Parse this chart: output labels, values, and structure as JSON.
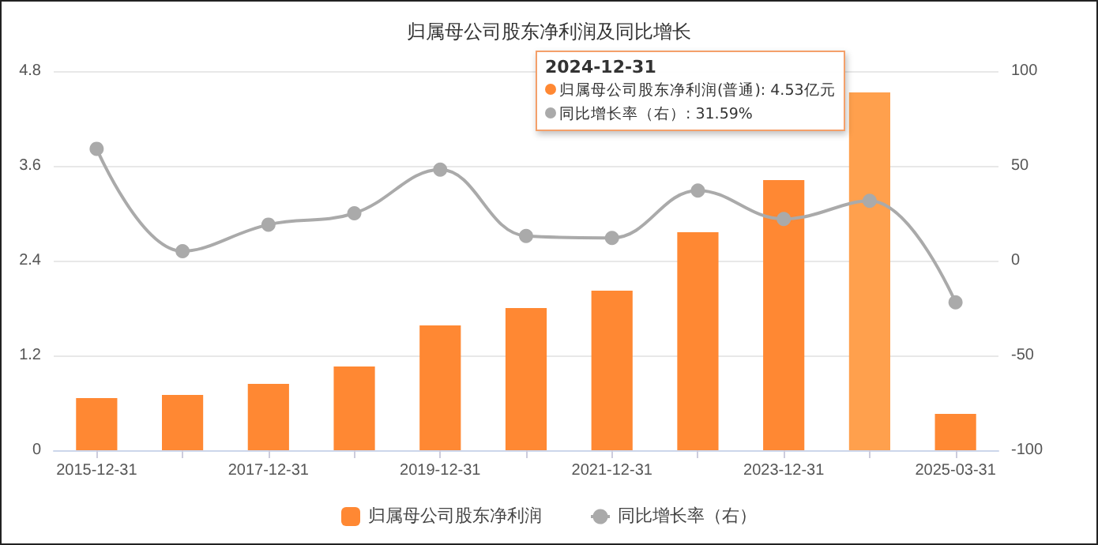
{
  "chart_data": {
    "type": "bar",
    "title": "归属母公司股东净利润及同比增长",
    "categories": [
      "2015-12-31",
      null,
      "2017-12-31",
      null,
      "2019-12-31",
      null,
      "2021-12-31",
      null,
      "2023-12-31",
      null,
      "2025-03-31"
    ],
    "series": [
      {
        "name": "归属母公司股东净利润",
        "color": "#ff8833",
        "colors": [
          "#ff8833",
          "#ff8833",
          "#ff8833",
          "#ff8833",
          "#ff8833",
          "#ff8833",
          "#ff8833",
          "#ff8833",
          "#ff8833",
          "#ffa04d",
          "#ff8833"
        ],
        "values": [
          0.66,
          0.7,
          0.84,
          1.06,
          1.58,
          1.8,
          2.02,
          2.76,
          3.42,
          4.53,
          0.46
        ]
      },
      {
        "name": "同比增长率（右）",
        "type": "line",
        "axis": "y2",
        "color": "#aaaaaa",
        "values": [
          59,
          5,
          19,
          25,
          48,
          13,
          12,
          37,
          22,
          31.59,
          -22
        ]
      }
    ],
    "ylim": [
      0,
      4.8
    ],
    "yticks": [
      0,
      1.2,
      2.4,
      3.6,
      4.8
    ],
    "y2lim": [
      -100,
      100
    ],
    "y2ticks": [
      -100,
      -50,
      0,
      50,
      100
    ],
    "grid": "y",
    "legend": "bottom",
    "marker": "circle",
    "annotations": [
      "2024-12-31",
      "归属母公司股东净利润(普通): 4.53亿元",
      "同比增长率（右）: 31.59%"
    ]
  }
}
